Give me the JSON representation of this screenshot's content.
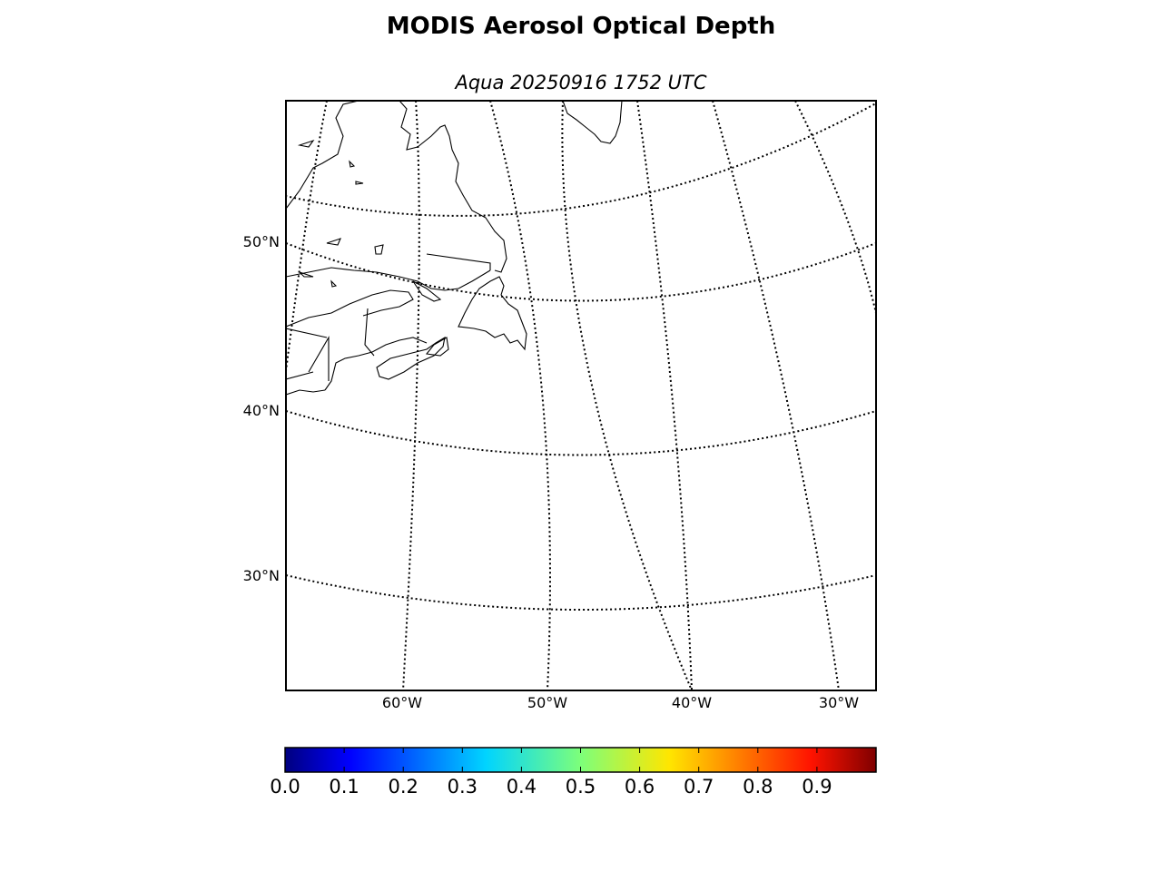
{
  "title": "MODIS Aerosol Optical Depth",
  "subtitle": "Aqua 20250916 1752 UTC",
  "map": {
    "projection": "lambert-conformal",
    "lat_labels": [
      "50°N",
      "40°N",
      "30°N"
    ],
    "lon_labels": [
      "60°W",
      "50°W",
      "40°W",
      "30°W"
    ],
    "graticule": "dotted",
    "regions_shown": [
      "Newfoundland",
      "Labrador",
      "Nova Scotia",
      "Gulf of St. Lawrence",
      "Greenland (southern tip)",
      "New England coast"
    ]
  },
  "colorbar": {
    "colormap": "jet",
    "range": [
      0.0,
      1.0
    ],
    "tick_labels": [
      "0.0",
      "0.1",
      "0.2",
      "0.3",
      "0.4",
      "0.5",
      "0.6",
      "0.7",
      "0.8",
      "0.9"
    ]
  }
}
